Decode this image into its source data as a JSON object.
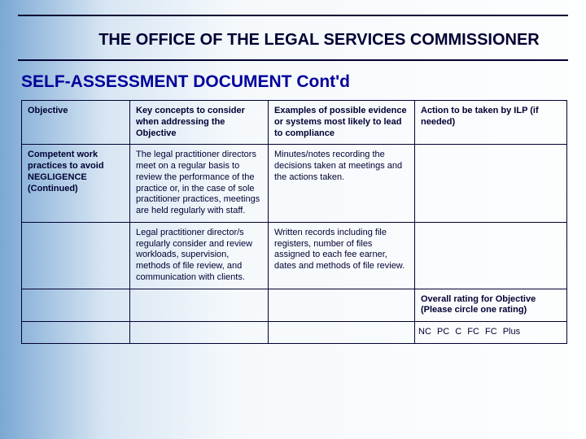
{
  "colors": {
    "text": "#000033",
    "subtitle": "#000099",
    "rule": "#000033",
    "border": "#000033",
    "bg_gradient_from": "#7ba8d4",
    "bg_gradient_to": "#fdfefe"
  },
  "title": "THE OFFICE OF THE LEGAL SERVICES COMMISSIONER",
  "subtitle": "SELF-ASSESSMENT DOCUMENT  Cont'd",
  "table": {
    "columns": [
      "Objective",
      "Key concepts to consider when addressing the Objective",
      "Examples of possible evidence or systems most likely to lead to compliance",
      "Action to be taken by ILP  (if needed)"
    ],
    "rows": [
      {
        "objective": "Competent work practices to avoid NEGLIGENCE  (Continued)",
        "concepts": "The legal practitioner directors meet on a regular basis to review the performance of the practice or, in the case of sole practitioner practices, meetings are held regularly with staff.",
        "examples": "Minutes/notes recording the decisions taken at meetings and the actions taken.",
        "action": ""
      },
      {
        "objective": "",
        "concepts": "Legal practitioner director/s regularly consider and review workloads, supervision, methods of file review, and communication with clients.",
        "examples": "Written records including file registers, number of files assigned to each fee earner, dates and methods of file review.",
        "action": ""
      }
    ],
    "overall_label": "Overall rating for Objective\n(Please circle one rating)",
    "ratings": "NC   PC   C   FC   FC Plus"
  },
  "typography": {
    "title_fontsize": 20,
    "subtitle_fontsize": 21,
    "cell_fontsize": 11
  }
}
